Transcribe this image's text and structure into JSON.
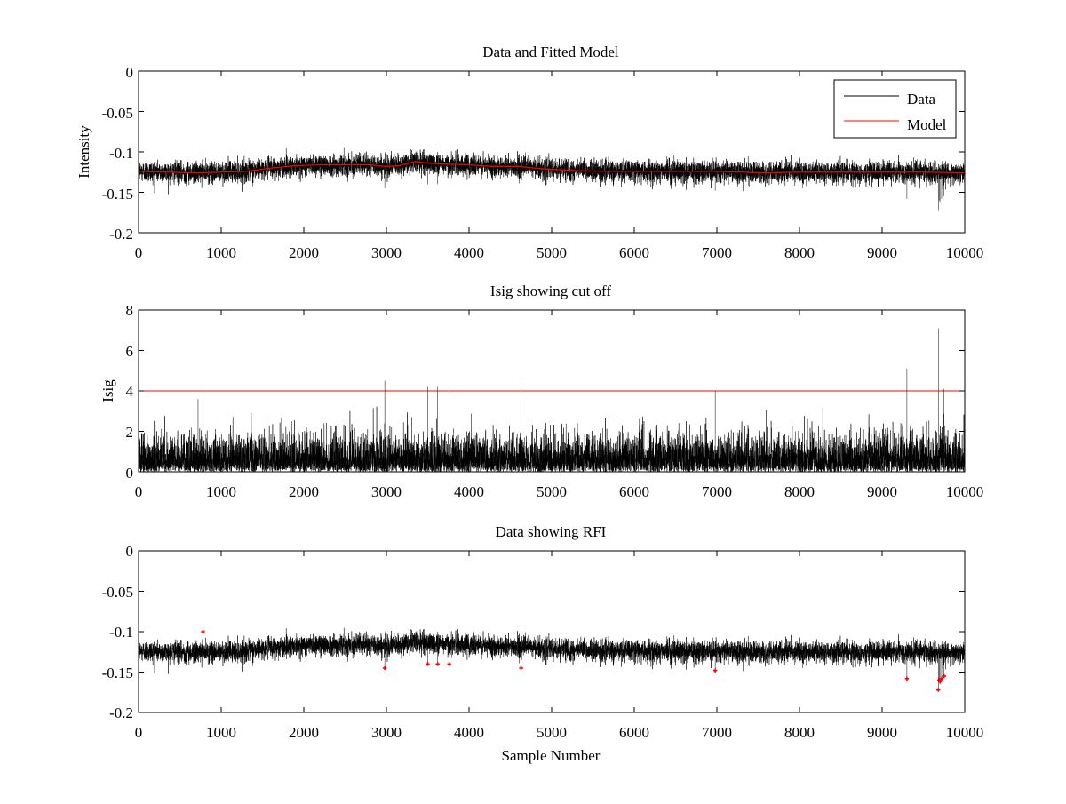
{
  "figure": {
    "background": "#ffffff",
    "axis_color": "#000000"
  },
  "chart_data": [
    {
      "type": "line",
      "title": "Data and Fitted Model",
      "xlabel": "",
      "ylabel": "Intensity",
      "xlim": [
        0,
        10000
      ],
      "ylim": [
        -0.2,
        0
      ],
      "xticks": [
        0,
        1000,
        2000,
        3000,
        4000,
        5000,
        6000,
        7000,
        8000,
        9000,
        10000
      ],
      "xtick_labels": [
        "0",
        "1000",
        "2000",
        "3000",
        "4000",
        "5000",
        "6000",
        "7000",
        "8000",
        "9000",
        "10000"
      ],
      "yticks": [
        0,
        -0.05,
        -0.1,
        -0.15,
        -0.2
      ],
      "ytick_labels": [
        "0",
        "-0.05",
        "-0.1",
        "-0.15",
        "-0.2"
      ],
      "legend": {
        "position": "top-right",
        "entries": [
          "Data",
          "Model"
        ]
      },
      "series": [
        {
          "name": "Data",
          "color": "#000000",
          "kind": "noise",
          "n_points": 10000,
          "noise_sd": 0.0065,
          "envelope_x": [
            0,
            700,
            1000,
            1300,
            1600,
            1900,
            2200,
            2500,
            2800,
            3000,
            3150,
            3350,
            3500,
            3700,
            4000,
            4300,
            4600,
            4900,
            5300,
            5700,
            6000,
            6500,
            7000,
            7300,
            7600,
            8000,
            8500,
            9000,
            9500,
            10000
          ],
          "envelope_y": [
            -0.124,
            -0.126,
            -0.125,
            -0.124,
            -0.12,
            -0.117,
            -0.116,
            -0.116,
            -0.116,
            -0.118,
            -0.117,
            -0.112,
            -0.114,
            -0.115,
            -0.116,
            -0.118,
            -0.118,
            -0.121,
            -0.123,
            -0.124,
            -0.124,
            -0.124,
            -0.124,
            -0.125,
            -0.126,
            -0.125,
            -0.125,
            -0.125,
            -0.125,
            -0.126
          ]
        },
        {
          "name": "Model",
          "color": "#ff0000",
          "kind": "line",
          "x": [
            0,
            700,
            1000,
            1300,
            1600,
            1900,
            2200,
            2500,
            2800,
            3000,
            3150,
            3350,
            3500,
            3700,
            4000,
            4300,
            4600,
            4900,
            5300,
            5700,
            6000,
            6500,
            7000,
            7300,
            7600,
            8000,
            8500,
            9000,
            9500,
            10000
          ],
          "y": [
            -0.124,
            -0.126,
            -0.125,
            -0.124,
            -0.12,
            -0.117,
            -0.116,
            -0.116,
            -0.116,
            -0.118,
            -0.117,
            -0.112,
            -0.114,
            -0.115,
            -0.116,
            -0.118,
            -0.118,
            -0.121,
            -0.123,
            -0.124,
            -0.124,
            -0.124,
            -0.124,
            -0.125,
            -0.126,
            -0.125,
            -0.125,
            -0.125,
            -0.125,
            -0.126
          ]
        }
      ]
    },
    {
      "type": "line",
      "title": "Isig showing cut off",
      "xlabel": "",
      "ylabel": "Isig",
      "xlim": [
        0,
        10000
      ],
      "ylim": [
        0,
        8
      ],
      "xticks": [
        0,
        1000,
        2000,
        3000,
        4000,
        5000,
        6000,
        7000,
        8000,
        9000,
        10000
      ],
      "xtick_labels": [
        "0",
        "1000",
        "2000",
        "3000",
        "4000",
        "5000",
        "6000",
        "7000",
        "8000",
        "9000",
        "10000"
      ],
      "yticks": [
        0,
        2,
        4,
        6,
        8
      ],
      "ytick_labels": [
        "0",
        "2",
        "4",
        "6",
        "8"
      ],
      "series": [
        {
          "name": "Isig",
          "color": "#000000",
          "kind": "abs_noise",
          "n_points": 10000,
          "noise_sd": 0.85,
          "spikes_x": [
            720,
            780,
            2980,
            3500,
            3620,
            3760,
            4630,
            6980,
            9300,
            9680,
            9750
          ],
          "spikes_y": [
            3.6,
            4.2,
            4.5,
            4.2,
            4.2,
            4.2,
            4.6,
            4.0,
            5.1,
            7.1,
            4.1
          ]
        },
        {
          "name": "Cut off",
          "color": "#ff0000",
          "kind": "hline",
          "y": 4
        }
      ]
    },
    {
      "type": "line",
      "title": "Data showing RFI",
      "xlabel": "Sample Number",
      "ylabel": "",
      "xlim": [
        0,
        10000
      ],
      "ylim": [
        -0.2,
        0
      ],
      "xticks": [
        0,
        1000,
        2000,
        3000,
        4000,
        5000,
        6000,
        7000,
        8000,
        9000,
        10000
      ],
      "xtick_labels": [
        "0",
        "1000",
        "2000",
        "3000",
        "4000",
        "5000",
        "6000",
        "7000",
        "8000",
        "9000",
        "10000"
      ],
      "yticks": [
        0,
        -0.05,
        -0.1,
        -0.15,
        -0.2
      ],
      "ytick_labels": [
        "0",
        "-0.05",
        "-0.1",
        "-0.15",
        "-0.2"
      ],
      "series": [
        {
          "name": "Data",
          "color": "#000000",
          "kind": "noise",
          "n_points": 10000,
          "noise_sd": 0.0065,
          "envelope_x": [
            0,
            700,
            1000,
            1300,
            1600,
            1900,
            2200,
            2500,
            2800,
            3000,
            3150,
            3350,
            3500,
            3700,
            4000,
            4300,
            4600,
            4900,
            5300,
            5700,
            6000,
            6500,
            7000,
            7300,
            7600,
            8000,
            8500,
            9000,
            9500,
            10000
          ],
          "envelope_y": [
            -0.124,
            -0.126,
            -0.125,
            -0.124,
            -0.12,
            -0.117,
            -0.116,
            -0.116,
            -0.116,
            -0.118,
            -0.117,
            -0.112,
            -0.114,
            -0.115,
            -0.116,
            -0.118,
            -0.118,
            -0.121,
            -0.123,
            -0.124,
            -0.124,
            -0.124,
            -0.124,
            -0.125,
            -0.126,
            -0.125,
            -0.125,
            -0.125,
            -0.125,
            -0.126
          ]
        },
        {
          "name": "RFI",
          "color": "#ff0000",
          "kind": "markers",
          "x": [
            780,
            2980,
            3500,
            3620,
            3760,
            4630,
            6980,
            9300,
            9680,
            9690,
            9700,
            9720,
            9750
          ],
          "y": [
            -0.1,
            -0.145,
            -0.14,
            -0.14,
            -0.14,
            -0.145,
            -0.148,
            -0.158,
            -0.172,
            -0.16,
            -0.162,
            -0.158,
            -0.155
          ]
        }
      ]
    }
  ]
}
